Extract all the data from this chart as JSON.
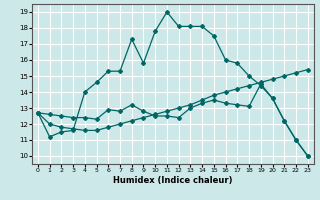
{
  "xlabel": "Humidex (Indice chaleur)",
  "bg_color": "#cce8e8",
  "grid_color": "#ffffff",
  "line_color": "#006666",
  "xlim": [
    -0.5,
    23.5
  ],
  "ylim": [
    9.5,
    19.5
  ],
  "xticks": [
    0,
    1,
    2,
    3,
    4,
    5,
    6,
    7,
    8,
    9,
    10,
    11,
    12,
    13,
    14,
    15,
    16,
    17,
    18,
    19,
    20,
    21,
    22,
    23
  ],
  "yticks": [
    10,
    11,
    12,
    13,
    14,
    15,
    16,
    17,
    18,
    19
  ],
  "line1_x": [
    0,
    1,
    2,
    3,
    4,
    5,
    6,
    7,
    8,
    9,
    10,
    11,
    12,
    13,
    14,
    15,
    16,
    17,
    18,
    19,
    20,
    21,
    22,
    23
  ],
  "line1_y": [
    12.7,
    11.2,
    11.5,
    11.6,
    14.0,
    14.6,
    15.3,
    15.3,
    17.3,
    15.8,
    17.8,
    19.0,
    18.1,
    18.1,
    18.1,
    17.5,
    16.0,
    15.8,
    15.0,
    14.4,
    13.6,
    12.2,
    11.0,
    10.0
  ],
  "line2_x": [
    0,
    1,
    2,
    3,
    4,
    5,
    6,
    7,
    8,
    9,
    10,
    11,
    12,
    13,
    14,
    15,
    16,
    17,
    18,
    19,
    20,
    21,
    22,
    23
  ],
  "line2_y": [
    12.7,
    12.6,
    12.5,
    12.4,
    12.4,
    12.3,
    12.9,
    12.8,
    13.2,
    12.8,
    12.5,
    12.5,
    12.4,
    13.0,
    13.3,
    13.5,
    13.3,
    13.2,
    13.1,
    14.5,
    13.6,
    12.2,
    11.0,
    10.0
  ],
  "line3_x": [
    0,
    1,
    2,
    3,
    4,
    5,
    6,
    7,
    8,
    9,
    10,
    11,
    12,
    13,
    14,
    15,
    16,
    17,
    18,
    19,
    20,
    21,
    22,
    23
  ],
  "line3_y": [
    12.7,
    12.0,
    11.8,
    11.7,
    11.6,
    11.6,
    11.8,
    12.0,
    12.2,
    12.4,
    12.6,
    12.8,
    13.0,
    13.2,
    13.5,
    13.8,
    14.0,
    14.2,
    14.4,
    14.6,
    14.8,
    15.0,
    15.2,
    15.4
  ]
}
